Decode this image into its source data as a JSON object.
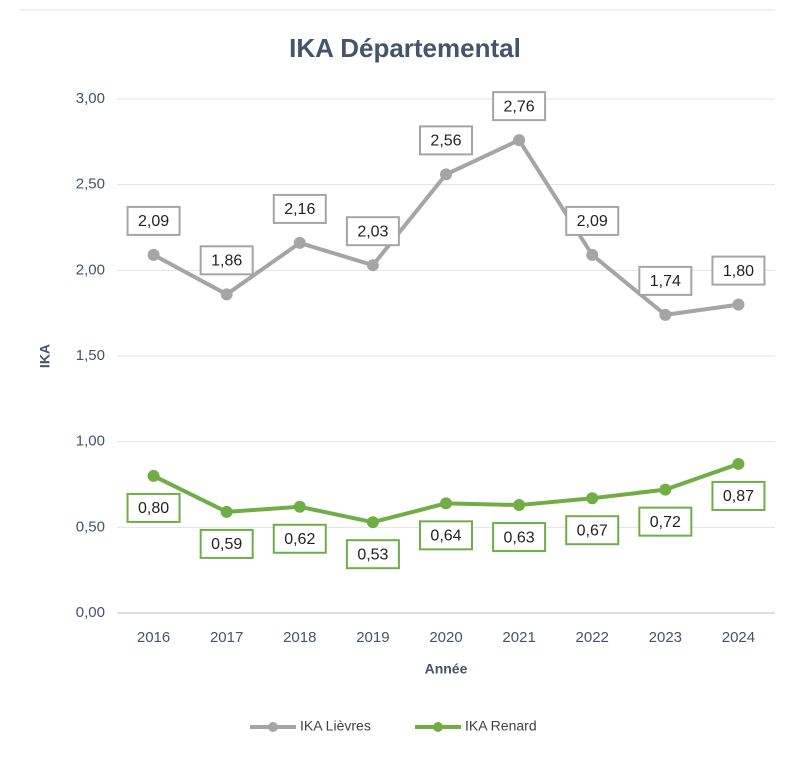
{
  "chart_data": {
    "type": "line",
    "title": "IKA Départemental",
    "xlabel": "Année",
    "ylabel": "IKA",
    "categories": [
      "2016",
      "2017",
      "2018",
      "2019",
      "2020",
      "2021",
      "2022",
      "2023",
      "2024"
    ],
    "series": [
      {
        "name": "IKA Lièvres",
        "color": "#a5a5a5",
        "values": [
          2.09,
          1.86,
          2.16,
          2.03,
          2.56,
          2.76,
          2.09,
          1.74,
          1.8
        ],
        "value_labels": [
          "2,09",
          "1,86",
          "2,16",
          "2,03",
          "2,56",
          "2,76",
          "2,09",
          "1,74",
          "1,80"
        ]
      },
      {
        "name": "IKA Renard",
        "color": "#70ad47",
        "values": [
          0.8,
          0.59,
          0.62,
          0.53,
          0.64,
          0.63,
          0.67,
          0.72,
          0.87
        ],
        "value_labels": [
          "0,80",
          "0,59",
          "0,62",
          "0,53",
          "0,64",
          "0,63",
          "0,67",
          "0,72",
          "0,87"
        ]
      }
    ],
    "ylim": [
      0,
      3
    ],
    "yticks": [
      {
        "value": 0,
        "label": "0,00"
      },
      {
        "value": 0.5,
        "label": "0,50"
      },
      {
        "value": 1,
        "label": "1,00"
      },
      {
        "value": 1.5,
        "label": "1,50"
      },
      {
        "value": 2,
        "label": "2,00"
      },
      {
        "value": 2.5,
        "label": "2,50"
      },
      {
        "value": 3,
        "label": "3,00"
      }
    ],
    "grid": true,
    "legend": "bottom"
  }
}
